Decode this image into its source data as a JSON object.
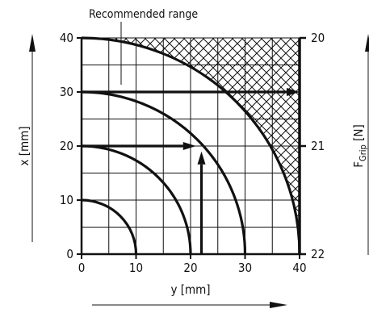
{
  "chart_data": {
    "type": "line",
    "title": "",
    "xlabel": "y [mm]",
    "ylabel": "x [mm]",
    "right_label_main": "F",
    "right_label_sub": "Grip",
    "right_label_unit": "[N]",
    "annotation": "Recommended range",
    "xlim": [
      0,
      40
    ],
    "ylim": [
      0,
      40
    ],
    "x_ticks": [
      "0",
      "10",
      "20",
      "30",
      "40"
    ],
    "y_ticks": [
      "0",
      "10",
      "20",
      "30",
      "40"
    ],
    "right_ticks": [
      {
        "label": "20",
        "at": 40
      },
      {
        "label": "21",
        "at": 20
      },
      {
        "label": "22",
        "at": 0
      }
    ],
    "grid": true,
    "grid_step": 5,
    "series": [
      {
        "radius": 10
      },
      {
        "radius": 20
      },
      {
        "radius": 30
      },
      {
        "radius": 40
      }
    ],
    "example_path": [
      [
        22,
        0
      ],
      [
        22,
        20
      ],
      [
        0,
        20
      ]
    ],
    "arrows": [
      {
        "from": [
          0,
          30
        ],
        "to": [
          40,
          30
        ]
      },
      {
        "from": [
          0,
          20
        ],
        "to": [
          21,
          20
        ]
      },
      {
        "from": [
          22,
          0
        ],
        "to": [
          22,
          19
        ]
      }
    ],
    "hatched_region": "outside quarter circle of radius 40 (upper-right corner)"
  }
}
